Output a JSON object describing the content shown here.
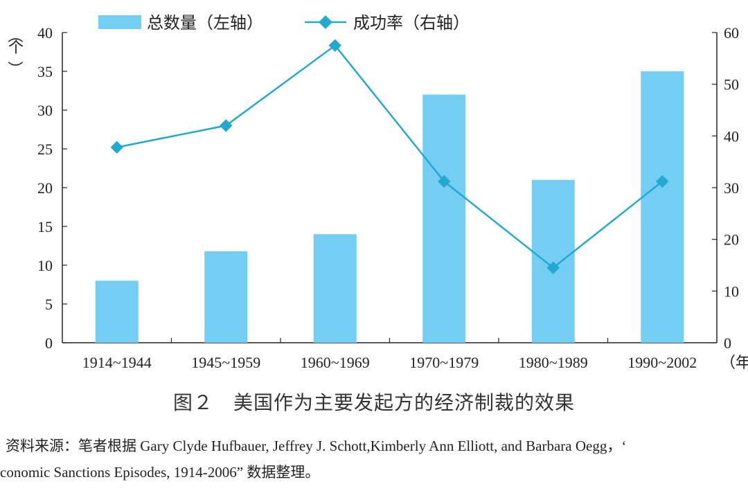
{
  "chart_data": {
    "type": "bar",
    "categories": [
      "1914~1944",
      "1945~1959",
      "1960~1969",
      "1970~1979",
      "1980~1989",
      "1990~2002"
    ],
    "series": [
      {
        "name": "总数量（左轴）",
        "type": "bar",
        "axis": "left",
        "color": "#74cdf2",
        "values": [
          8,
          11.8,
          14,
          32,
          21,
          35
        ]
      },
      {
        "name": "成功率（右轴）",
        "type": "line",
        "axis": "right",
        "color": "#22a9d0",
        "values": [
          37.8,
          42,
          57.5,
          31.2,
          14.5,
          31.2
        ]
      }
    ],
    "y_left": {
      "label_chars": [
        "（",
        "个",
        "）"
      ],
      "ylim": [
        0,
        40
      ],
      "ticks": [
        "0",
        "5",
        "10",
        "15",
        "20",
        "25",
        "30",
        "35",
        "40"
      ]
    },
    "y_right": {
      "ylim": [
        0,
        60
      ],
      "ticks": [
        "0",
        "10",
        "20",
        "30",
        "40",
        "50",
        "60"
      ]
    },
    "x_unit": "（年",
    "legend_position": "top",
    "grid": false
  },
  "caption": "图２　美国作为主要发起方的经济制裁的效果",
  "source_line1": "资料来源：笔者根据 Gary Clyde Hufbauer, Jeffrey J. Schott,Kimberly Ann Elliott, and Barbara Oegg，‘",
  "source_line2": "conomic Sanctions Episodes, 1914-2006” 数据整理。"
}
